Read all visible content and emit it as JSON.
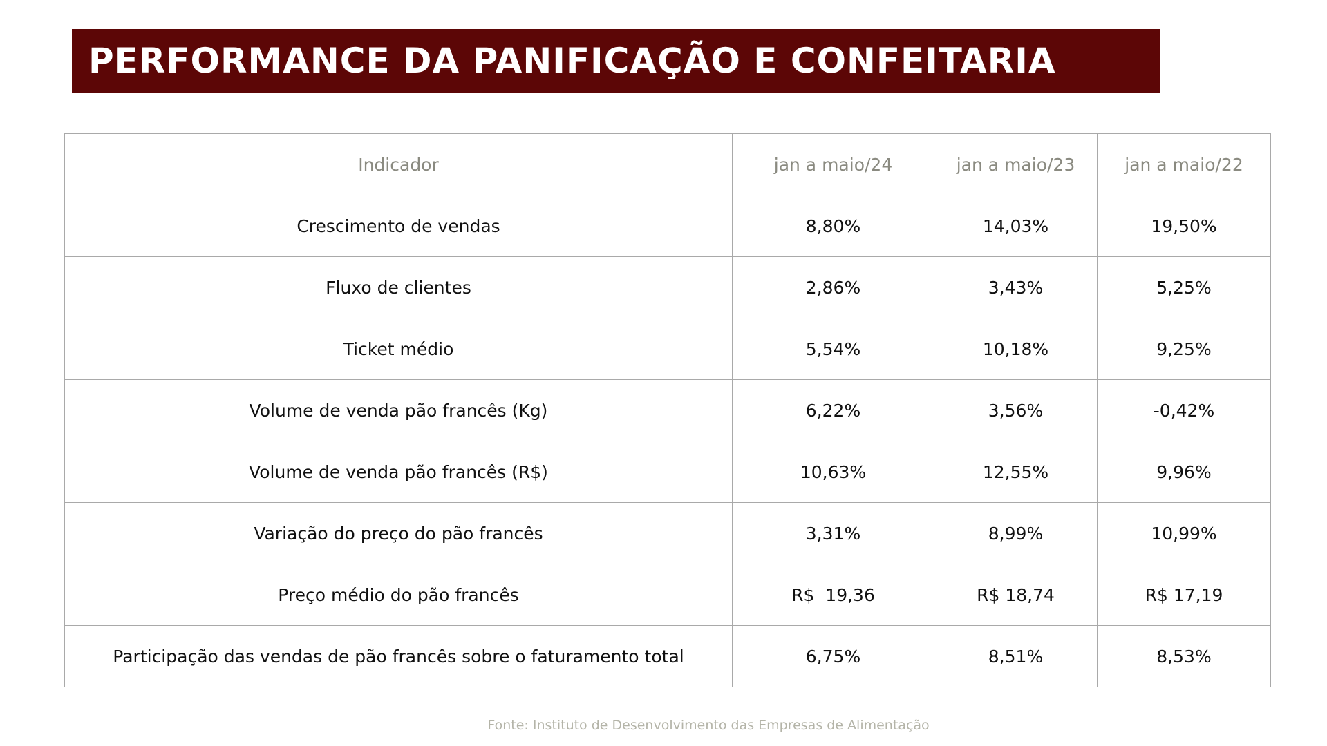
{
  "title": "PERFORMANCE DA PANIFICAÇÃO E CONFEITARIA",
  "table": {
    "headers": [
      "Indicador",
      "jan a maio/24",
      "jan a maio/23",
      "jan a maio/22"
    ],
    "rows": [
      [
        "Crescimento de vendas",
        "8,80%",
        "14,03%",
        "19,50%"
      ],
      [
        "Fluxo de clientes",
        "2,86%",
        "3,43%",
        "5,25%"
      ],
      [
        "Ticket médio",
        "5,54%",
        "10,18%",
        "9,25%"
      ],
      [
        "Volume de venda pão francês (Kg)",
        "6,22%",
        "3,56%",
        "-0,42%"
      ],
      [
        "Volume de venda pão francês (R$)",
        "10,63%",
        "12,55%",
        "9,96%"
      ],
      [
        "Variação do preço do pão francês",
        "3,31%",
        "8,99%",
        "10,99%"
      ],
      [
        "Preço médio do pão francês",
        "R$  19,36",
        "R$ 18,74",
        "R$ 17,19"
      ],
      [
        "Participação das vendas de pão francês sobre o faturamento total",
        "6,75%",
        "8,51%",
        "8,53%"
      ]
    ]
  },
  "source": "Fonte: Instituto de Desenvolvimento das Empresas de Alimentação",
  "colors": {
    "banner": "#5c0606",
    "header_text": "#8a8a80",
    "border": "#a9a9a9",
    "source_text": "#b4b4a8"
  }
}
